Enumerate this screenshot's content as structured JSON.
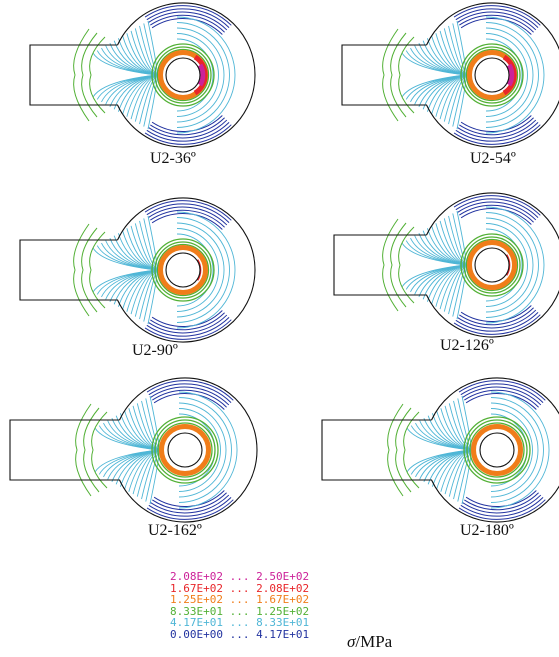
{
  "panels": [
    {
      "caption": "U2-36º",
      "variant": "early"
    },
    {
      "caption": "U2-54º",
      "variant": "early"
    },
    {
      "caption": "U2-90º",
      "variant": "mid"
    },
    {
      "caption": "U2-126º",
      "variant": "mid"
    },
    {
      "caption": "U2-162º",
      "variant": "late"
    },
    {
      "caption": "U2-180º",
      "variant": "late"
    }
  ],
  "legend": {
    "rows": [
      {
        "low": "2.08E+02",
        "sep": "...",
        "high": "2.50E+02",
        "color": "#cc2299"
      },
      {
        "low": "1.67E+02",
        "sep": "...",
        "high": "2.08E+02",
        "color": "#e8262a"
      },
      {
        "low": "1.25E+02",
        "sep": "...",
        "high": "1.67E+02",
        "color": "#f07d1a"
      },
      {
        "low": "8.33E+01",
        "sep": "...",
        "high": "1.25E+02",
        "color": "#52b035"
      },
      {
        "low": "4.17E+01",
        "sep": "...",
        "high": "8.33E+01",
        "color": "#4fb6d6"
      },
      {
        "low": "0.00E+00",
        "sep": "...",
        "high": "4.17E+01",
        "color": "#2233a0"
      }
    ],
    "sigma": "σ",
    "unit": "/MPa"
  }
}
